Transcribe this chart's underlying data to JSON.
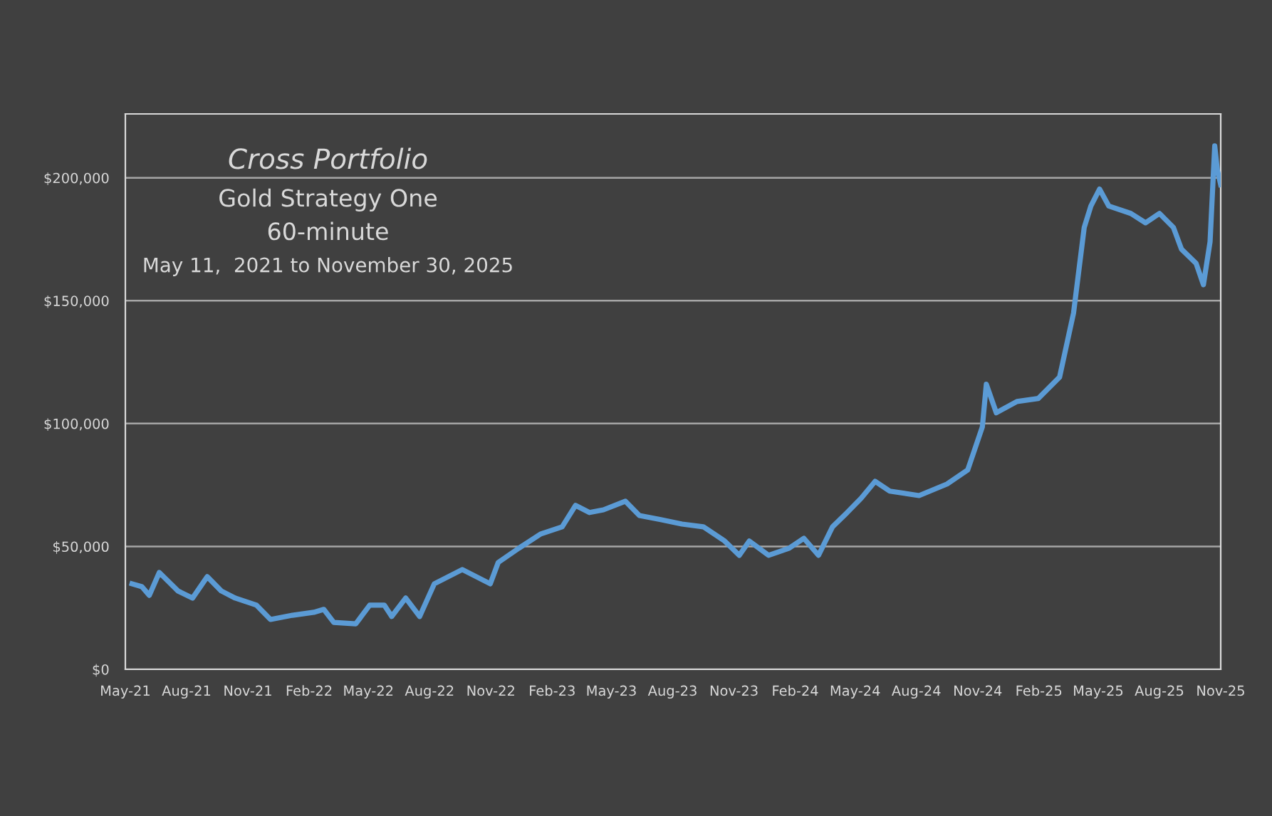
{
  "chart_data": {
    "type": "line",
    "title": "Cross Portfolio",
    "subtitle": "Gold Strategy One",
    "annotations": [
      "60-minute",
      "May 11,  2021 to November 30, 2025"
    ],
    "x": [
      "2021-05-11",
      "2021-05-26",
      "2021-06-06",
      "2021-06-21",
      "2021-07-19",
      "2021-08-10",
      "2021-09-01",
      "2021-09-22",
      "2021-10-13",
      "2021-11-14",
      "2021-12-05",
      "2022-01-07",
      "2022-02-08",
      "2022-02-23",
      "2022-03-10",
      "2022-04-12",
      "2022-05-03",
      "2022-05-25",
      "2022-06-05",
      "2022-06-26",
      "2022-07-17",
      "2022-08-08",
      "2022-08-29",
      "2022-09-19",
      "2022-10-10",
      "2022-10-31",
      "2022-11-12",
      "2022-12-13",
      "2023-01-15",
      "2023-02-16",
      "2023-03-08",
      "2023-03-29",
      "2023-04-19",
      "2023-05-22",
      "2023-06-12",
      "2023-07-14",
      "2023-08-15",
      "2023-09-16",
      "2023-10-18",
      "2023-11-09",
      "2023-11-24",
      "2023-12-23",
      "2024-01-23",
      "2024-02-14",
      "2024-03-07",
      "2024-03-28",
      "2024-04-19",
      "2024-05-10",
      "2024-05-31",
      "2024-06-22",
      "2024-08-05",
      "2024-09-16",
      "2024-10-17",
      "2024-11-08",
      "2024-11-14",
      "2024-11-29",
      "2024-12-30",
      "2025-01-31",
      "2025-03-04",
      "2025-03-25",
      "2025-04-10",
      "2025-04-20",
      "2025-05-03",
      "2025-05-17",
      "2025-06-19",
      "2025-07-11",
      "2025-08-01",
      "2025-08-22",
      "2025-09-03",
      "2025-09-25",
      "2025-10-06",
      "2025-10-16",
      "2025-10-23",
      "2025-10-27",
      "2025-11-01"
    ],
    "series": [
      {
        "color": "#5b9bd5",
        "values": [
          34800,
          33600,
          30100,
          39400,
          31900,
          29000,
          37700,
          31900,
          29000,
          26100,
          20300,
          22000,
          23200,
          24400,
          19100,
          18500,
          26100,
          26100,
          21500,
          29000,
          21500,
          34800,
          37700,
          40600,
          37700,
          34800,
          43500,
          49300,
          55100,
          58000,
          66700,
          63800,
          64900,
          68400,
          62600,
          60900,
          59100,
          58000,
          52200,
          46400,
          52200,
          46400,
          49300,
          53300,
          46400,
          58000,
          63800,
          69600,
          76500,
          72500,
          70700,
          75400,
          81100,
          98600,
          116000,
          104400,
          109000,
          110200,
          118900,
          145000,
          179800,
          188500,
          195400,
          188500,
          185500,
          181700,
          185500,
          179800,
          171000,
          165200,
          156500,
          174000,
          213000,
          203100,
          197200
        ]
      }
    ],
    "xlim": [
      "2021-05-01",
      "2025-11-01"
    ],
    "xticks": [
      {
        "value": "2021-05-01",
        "label": "May-21"
      },
      {
        "value": "2021-08-01",
        "label": "Aug-21"
      },
      {
        "value": "2021-11-01",
        "label": "Nov-21"
      },
      {
        "value": "2022-02-01",
        "label": "Feb-22"
      },
      {
        "value": "2022-05-01",
        "label": "May-22"
      },
      {
        "value": "2022-08-01",
        "label": "Aug-22"
      },
      {
        "value": "2022-11-01",
        "label": "Nov-22"
      },
      {
        "value": "2023-02-01",
        "label": "Feb-23"
      },
      {
        "value": "2023-05-01",
        "label": "May-23"
      },
      {
        "value": "2023-08-01",
        "label": "Aug-23"
      },
      {
        "value": "2023-11-01",
        "label": "Nov-23"
      },
      {
        "value": "2024-02-01",
        "label": "Feb-24"
      },
      {
        "value": "2024-05-01",
        "label": "May-24"
      },
      {
        "value": "2024-08-01",
        "label": "Aug-24"
      },
      {
        "value": "2024-11-01",
        "label": "Nov-24"
      },
      {
        "value": "2025-02-01",
        "label": "Feb-25"
      },
      {
        "value": "2025-05-01",
        "label": "May-25"
      },
      {
        "value": "2025-08-01",
        "label": "Aug-25"
      },
      {
        "value": "2025-11-01",
        "label": "Nov-25"
      }
    ],
    "ylim": [
      0,
      226000
    ],
    "yticks": [
      {
        "value": 0,
        "label": "$0"
      },
      {
        "value": 50000,
        "label": "$50,000"
      },
      {
        "value": 100000,
        "label": "$100,000"
      },
      {
        "value": 150000,
        "label": "$150,000"
      },
      {
        "value": 200000,
        "label": "$200,000"
      }
    ],
    "grid": "y",
    "legend": false,
    "marker": "none",
    "line_style": "solid"
  }
}
